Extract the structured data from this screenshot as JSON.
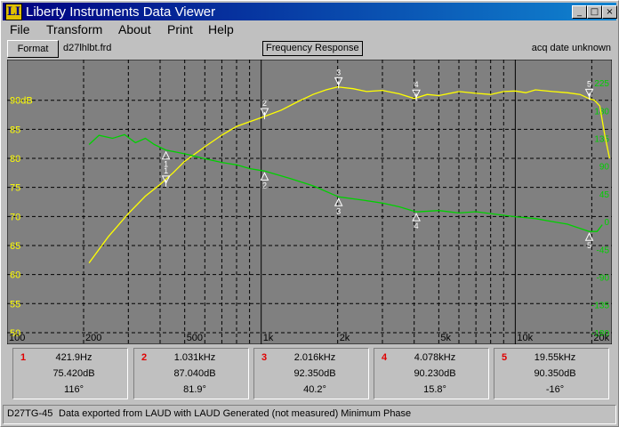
{
  "window": {
    "title": "Liberty Instruments Data Viewer",
    "icon_letters": "LI",
    "min": "_",
    "max": "□",
    "close": "×"
  },
  "menu": [
    {
      "label": "File",
      "hot": "F"
    },
    {
      "label": "Transform",
      "hot": "T"
    },
    {
      "label": "About",
      "hot": "A"
    },
    {
      "label": "Print",
      "hot": "P"
    },
    {
      "label": "Help",
      "hot": "H"
    }
  ],
  "toolbar": {
    "format_label": "Format",
    "file_name": "d27lhlbt.frd",
    "plot_title": "Frequency Response",
    "acq_date": "acq date unknown"
  },
  "chart_data": {
    "type": "line",
    "x_scale": "log",
    "xlim": [
      100,
      24000
    ],
    "x_ticks": [
      {
        "v": 100,
        "label": "100"
      },
      {
        "v": 200,
        "label": "200"
      },
      {
        "v": 500,
        "label": "500"
      },
      {
        "v": 1000,
        "label": "1k"
      },
      {
        "v": 2000,
        "label": "2k"
      },
      {
        "v": 5000,
        "label": "5k"
      },
      {
        "v": 10000,
        "label": "10k"
      },
      {
        "v": 20000,
        "label": "20k"
      }
    ],
    "ylim": [
      48,
      97
    ],
    "y_ticks": [
      {
        "v": 90,
        "label": "90dB"
      },
      {
        "v": 85,
        "label": "85"
      },
      {
        "v": 80,
        "label": "80"
      },
      {
        "v": 75,
        "label": "75"
      },
      {
        "v": 70,
        "label": "70"
      },
      {
        "v": 65,
        "label": "65"
      },
      {
        "v": 60,
        "label": "60"
      },
      {
        "v": 55,
        "label": "55"
      },
      {
        "v": 50,
        "label": "50"
      }
    ],
    "phase_ticks": [
      {
        "v": 225,
        "label": "225"
      },
      {
        "v": 180,
        "label": "180"
      },
      {
        "v": 135,
        "label": "135"
      },
      {
        "v": 90,
        "label": "90"
      },
      {
        "v": 45,
        "label": "45"
      },
      {
        "v": 0,
        "label": "0"
      },
      {
        "v": -45,
        "label": "-45"
      },
      {
        "v": -90,
        "label": "-90"
      },
      {
        "v": -135,
        "label": "-135"
      },
      {
        "v": -180,
        "label": "-180"
      }
    ],
    "phase_lim": [
      -180,
      225
    ],
    "grid": true,
    "colors": {
      "background": "#808080",
      "magnitude": "#ffff00",
      "phase": "#00d000",
      "grid": "#000000",
      "marker": "#ffffff"
    },
    "series": [
      {
        "axis": "magnitude",
        "x": [
          210,
          250,
          300,
          350,
          400,
          450,
          500,
          600,
          700,
          800,
          900,
          1000,
          1200,
          1400,
          1600,
          1800,
          2000,
          2300,
          2600,
          3000,
          3500,
          4000,
          4500,
          5000,
          6000,
          7000,
          8000,
          9000,
          10000,
          11000,
          12000,
          14000,
          16000,
          18000,
          19500,
          20500,
          21500,
          22500,
          23500
        ],
        "y": [
          62,
          66.5,
          70.5,
          73.5,
          75.5,
          77.5,
          79.5,
          82,
          84,
          85.5,
          86.3,
          87,
          88.3,
          89.8,
          91,
          91.8,
          92.3,
          92,
          91.5,
          91.7,
          91.1,
          90.3,
          91,
          90.8,
          91.5,
          91.2,
          91,
          91.5,
          91.6,
          91.3,
          91.8,
          91.5,
          91.3,
          91,
          90.3,
          90,
          89,
          84,
          80
        ]
      },
      {
        "axis": "phase",
        "x": [
          210,
          230,
          260,
          290,
          320,
          350,
          380,
          421.9,
          500,
          600,
          700,
          800,
          900,
          1031,
          1300,
          1600,
          2016,
          2500,
          3000,
          3500,
          4078,
          5000,
          6000,
          7000,
          8000,
          10000,
          12000,
          14000,
          16000,
          19550,
          21000,
          22000
        ],
        "y": [
          125,
          140,
          135,
          141,
          128,
          135,
          125,
          116,
          110,
          102,
          96,
          92,
          86,
          81.9,
          70,
          58,
          40.2,
          35,
          30,
          24,
          15.8,
          18,
          14,
          16,
          13,
          8,
          5,
          0,
          -4,
          -16,
          -16,
          -5
        ]
      }
    ],
    "markers": [
      {
        "id": "1",
        "freq": "421.9Hz",
        "mag": "75.420dB",
        "phase": "116°",
        "hz": 421.9,
        "mag_v": 75.42,
        "phase_v": 116
      },
      {
        "id": "2",
        "freq": "1.031kHz",
        "mag": "87.040dB",
        "phase": "81.9°",
        "hz": 1031,
        "mag_v": 87.04,
        "phase_v": 81.9
      },
      {
        "id": "3",
        "freq": "2.016kHz",
        "mag": "92.350dB",
        "phase": "40.2°",
        "hz": 2016,
        "mag_v": 92.35,
        "phase_v": 40.2
      },
      {
        "id": "4",
        "freq": "4.078kHz",
        "mag": "90.230dB",
        "phase": "15.8°",
        "hz": 4078,
        "mag_v": 90.23,
        "phase_v": 15.8
      },
      {
        "id": "5",
        "freq": "19.55kHz",
        "mag": "90.350dB",
        "phase": "-16°",
        "hz": 19550,
        "mag_v": 90.35,
        "phase_v": -16
      }
    ]
  },
  "status": {
    "left": "D27TG-45",
    "right": "Data exported from LAUD with LAUD Generated (not measured) Minimum Phase"
  }
}
